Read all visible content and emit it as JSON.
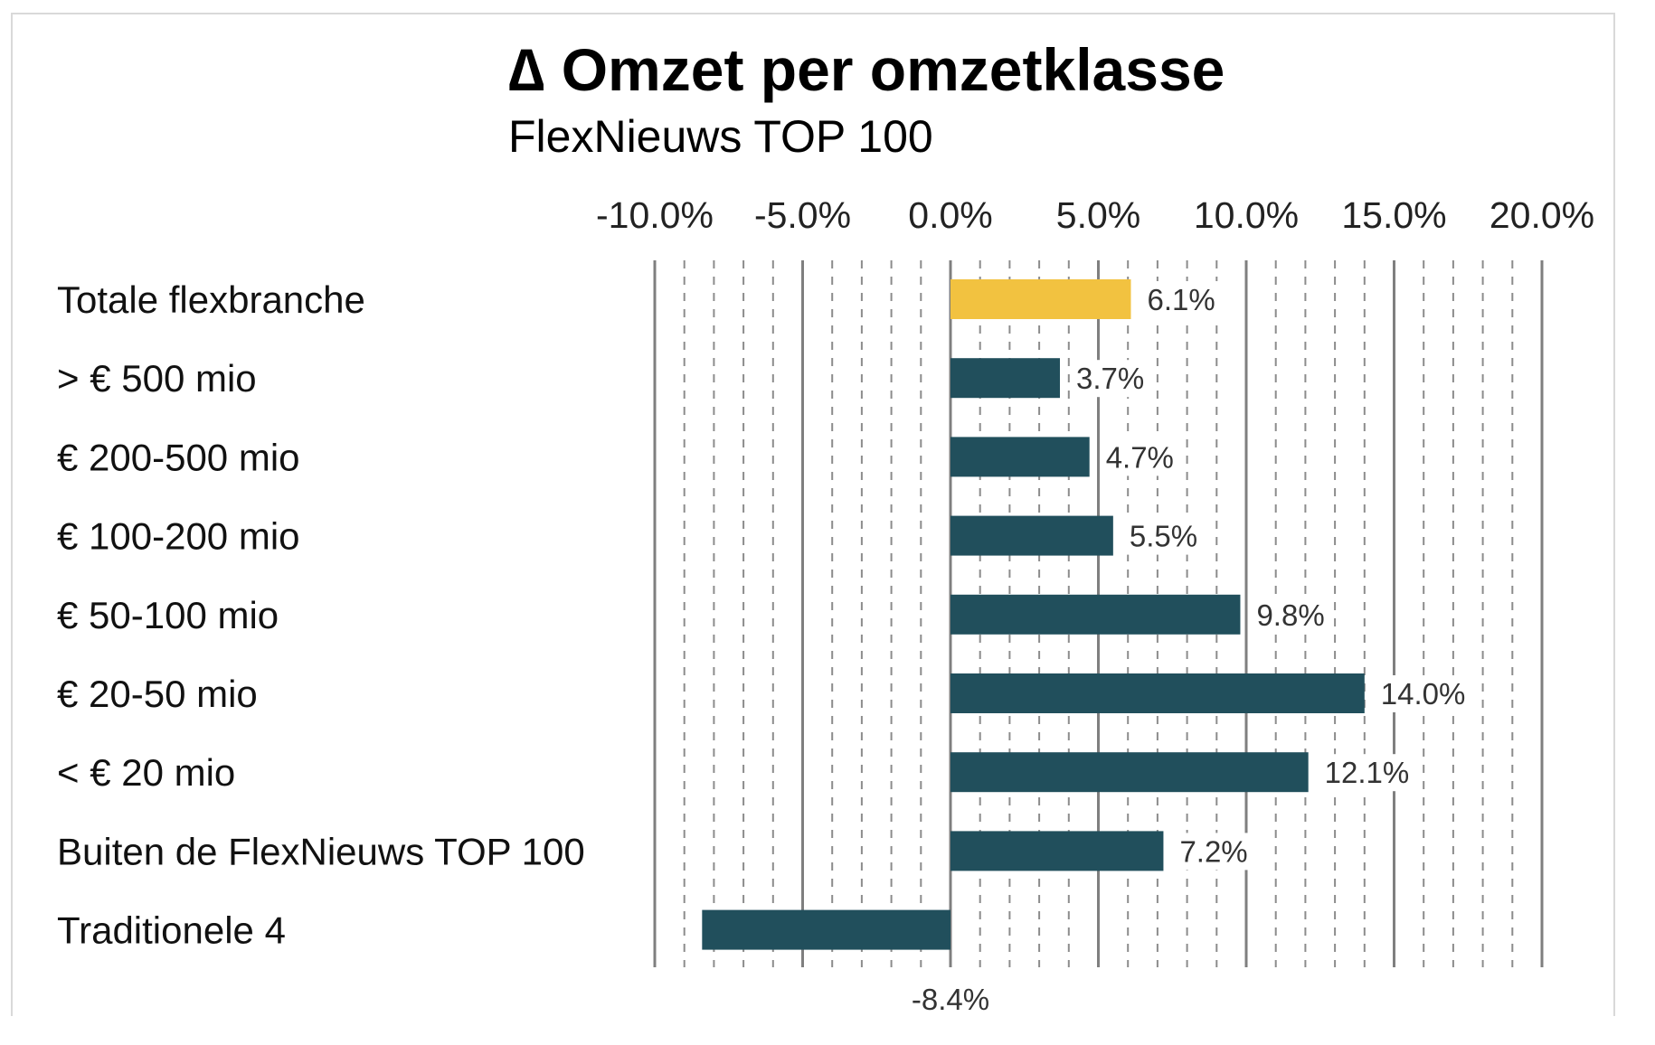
{
  "chart_data": {
    "type": "bar",
    "orientation": "horizontal",
    "title": "∆ Omzet per omzetklasse",
    "subtitle": "FlexNieuws TOP 100",
    "categories": [
      "Totale flexbranche",
      "> € 500 mio",
      "€ 200-500 mio",
      "€ 100-200 mio",
      "€ 50-100 mio",
      "€ 20-50 mio",
      "< € 20 mio",
      "Buiten de FlexNieuws TOP 100",
      "Traditionele 4"
    ],
    "values": [
      6.1,
      3.7,
      4.7,
      5.5,
      9.8,
      14.0,
      12.1,
      7.2,
      -8.4
    ],
    "value_labels": [
      "6.1%",
      "3.7%",
      "4.7%",
      "5.5%",
      "9.8%",
      "14.0%",
      "12.1%",
      "7.2%",
      "-8.4%"
    ],
    "xlim": [
      -10,
      20
    ],
    "x_ticks": [
      -10,
      -5,
      0,
      5,
      10,
      15,
      20
    ],
    "x_tick_labels": [
      "-10.0%",
      "-5.0%",
      "0.0%",
      "5.0%",
      "10.0%",
      "15.0%",
      "20.0%"
    ],
    "x_axis_position": "top",
    "grid": {
      "major": "solid",
      "minor": "dashed"
    },
    "colors": {
      "highlight": "#F2C240",
      "bar": "#214F5C",
      "major_grid": "#7f7f7f",
      "minor_grid": "#8c8c8c"
    },
    "highlight_index": 0
  }
}
